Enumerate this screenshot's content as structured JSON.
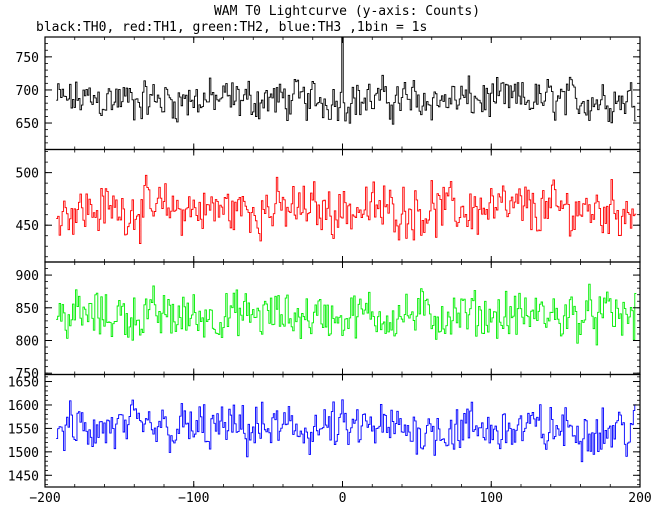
{
  "chart_data": {
    "type": "line",
    "title": "WAM T0 Lightcurve (y-axis: Counts)",
    "subtitle": "black:TH0, red:TH1, green:TH2, blue:TH3 ,1bin = 1s",
    "xlim": [
      -200,
      200
    ],
    "x_ticks": [
      -200,
      -100,
      0,
      100,
      200
    ],
    "x_tick_labels": [
      "−200",
      "−100",
      "0",
      "100",
      "200"
    ],
    "x_range": [
      -192,
      197
    ],
    "x_step": 1,
    "grid": false,
    "legend": "none",
    "panels": [
      {
        "series": "TH0",
        "color": "#000000",
        "ylim": [
          610,
          780
        ],
        "y_ticks": [
          650,
          700,
          750
        ],
        "mean": 685,
        "noise_amplitude": 38,
        "spike": {
          "x": 0,
          "value": 782
        }
      },
      {
        "series": "TH1",
        "color": "#ff0000",
        "ylim": [
          415,
          522
        ],
        "y_ticks": [
          450,
          500
        ],
        "mean": 465,
        "noise_amplitude": 30
      },
      {
        "series": "TH2",
        "color": "#00ee00",
        "ylim": [
          748,
          920
        ],
        "y_ticks": [
          750,
          800,
          850,
          900
        ],
        "mean": 838,
        "noise_amplitude": 45
      },
      {
        "series": "TH3",
        "color": "#0000ff",
        "ylim": [
          1425,
          1665
        ],
        "y_ticks": [
          1450,
          1500,
          1550,
          1600,
          1650
        ],
        "mean": 1548,
        "noise_amplitude": 65
      }
    ]
  }
}
